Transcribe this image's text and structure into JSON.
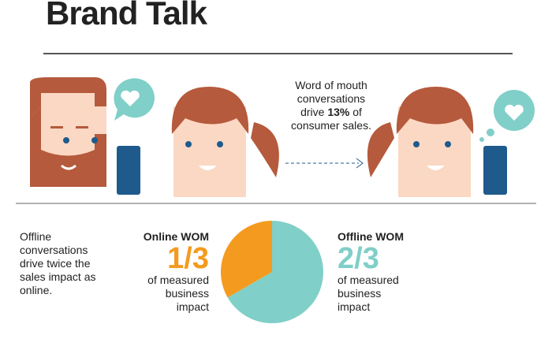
{
  "header": {
    "title": "Brand Talk"
  },
  "callout": {
    "parts": [
      "Word of mouth conversations drive ",
      "13%",
      " of consumer sales."
    ]
  },
  "note": "Offline conversations drive twice the sales impact as online.",
  "chart_data": {
    "type": "pie",
    "categories": [
      "Online WOM",
      "Offline WOM"
    ],
    "values": [
      0.3333,
      0.6667
    ],
    "value_labels": [
      "1/3",
      "2/3"
    ],
    "colors": [
      "#f49b1f",
      "#80cfc8"
    ],
    "captions": [
      "of measured business impact",
      "of measured business impact"
    ]
  }
}
